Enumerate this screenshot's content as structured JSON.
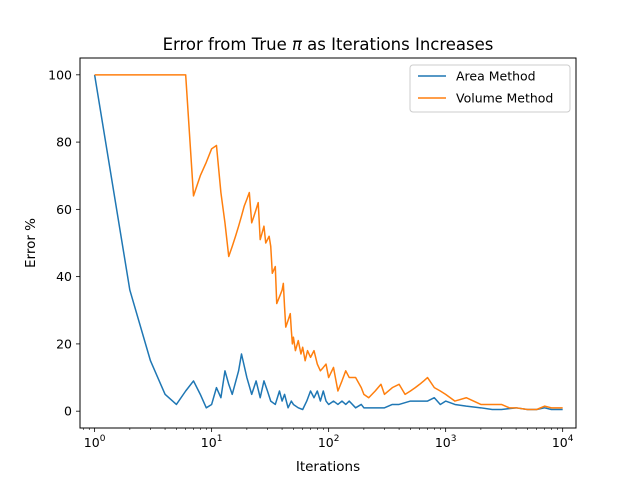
{
  "chart_data": {
    "type": "line",
    "title_prefix": "Error from True ",
    "title_symbol": "π",
    "title_suffix": " as Iterations Increases",
    "xlabel": "Iterations",
    "ylabel": "Error %",
    "xscale": "log",
    "xlim": [
      0.75,
      13000
    ],
    "ylim": [
      -5,
      105
    ],
    "xticks": [
      {
        "value": 1,
        "base": "10",
        "exp": "0"
      },
      {
        "value": 10,
        "base": "10",
        "exp": "1"
      },
      {
        "value": 100,
        "base": "10",
        "exp": "2"
      },
      {
        "value": 1000,
        "base": "10",
        "exp": "3"
      },
      {
        "value": 10000,
        "base": "10",
        "exp": "4"
      }
    ],
    "yticks": [
      0,
      20,
      40,
      60,
      80,
      100
    ],
    "grid": false,
    "legend_position": "top-right",
    "series": [
      {
        "name": "Area Method",
        "color": "#1f77b4",
        "x": [
          1,
          2,
          3,
          4,
          5,
          6,
          7,
          8,
          9,
          10,
          11,
          12,
          13,
          14,
          15,
          17,
          18,
          20,
          22,
          24,
          26,
          28,
          30,
          32,
          35,
          38,
          40,
          42,
          45,
          48,
          50,
          55,
          60,
          65,
          70,
          75,
          80,
          85,
          90,
          95,
          100,
          110,
          120,
          130,
          140,
          150,
          170,
          190,
          200,
          250,
          300,
          350,
          400,
          500,
          600,
          700,
          800,
          900,
          1000,
          1200,
          1500,
          2000,
          2500,
          3000,
          4000,
          5000,
          6000,
          7000,
          8000,
          10000
        ],
        "y": [
          100,
          36,
          15,
          5,
          2,
          6,
          9,
          5,
          1,
          2,
          7,
          4,
          12,
          8,
          5,
          12,
          17,
          10,
          5,
          9,
          4,
          9,
          6,
          3,
          2,
          6,
          3,
          5,
          1,
          3,
          2,
          1,
          0.5,
          3,
          6,
          4,
          6,
          3,
          6,
          3,
          2,
          3,
          2,
          3,
          2,
          3,
          1,
          2,
          1,
          1,
          1,
          2,
          2,
          3,
          3,
          3,
          4,
          2,
          3,
          2,
          1.5,
          1,
          0.5,
          0.5,
          1,
          0.5,
          0.5,
          1,
          0.5,
          0.5
        ]
      },
      {
        "name": "Volume Method",
        "color": "#ff7f0e",
        "x": [
          1,
          2,
          3,
          4,
          5,
          6,
          7,
          8,
          9,
          10,
          11,
          12,
          13,
          14,
          15,
          16,
          17,
          18,
          19,
          20,
          21,
          22,
          23,
          24,
          25,
          26,
          27,
          28,
          29,
          30,
          31,
          32,
          33,
          34,
          35,
          36,
          37,
          38,
          39,
          40,
          41,
          42,
          43,
          44,
          45,
          46,
          47,
          48,
          49,
          50,
          52,
          55,
          58,
          60,
          63,
          66,
          70,
          75,
          80,
          85,
          90,
          95,
          100,
          110,
          120,
          130,
          140,
          150,
          170,
          190,
          200,
          220,
          250,
          280,
          300,
          350,
          400,
          450,
          500,
          550,
          600,
          650,
          700,
          800,
          900,
          1000,
          1200,
          1500,
          2000,
          2500,
          3000,
          3500,
          4000,
          5000,
          6000,
          7000,
          8000,
          9000,
          10000
        ],
        "y": [
          100,
          100,
          100,
          100,
          100,
          100,
          64,
          70,
          74,
          78,
          79,
          65,
          56,
          46,
          49,
          52,
          55,
          58,
          61,
          63,
          65,
          56,
          58,
          60,
          62,
          51,
          53,
          55,
          50,
          51,
          52,
          49,
          41,
          42,
          43,
          32,
          33,
          34,
          35,
          36,
          38,
          31,
          25,
          26,
          27,
          28,
          29,
          24,
          20,
          22,
          18,
          21,
          17,
          19,
          15,
          18,
          16,
          18,
          14,
          12,
          13,
          14,
          10,
          13,
          6,
          9,
          12,
          10,
          10,
          7,
          5,
          4,
          6,
          8,
          5,
          7,
          8,
          5,
          6,
          7,
          8,
          9,
          10,
          7,
          6,
          5,
          3,
          4,
          2,
          2,
          2,
          1,
          1,
          0.5,
          0.5,
          1.5,
          1,
          1,
          1
        ]
      }
    ]
  }
}
